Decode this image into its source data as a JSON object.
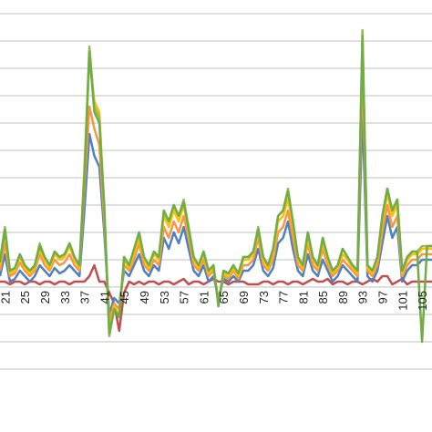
{
  "chart_data": {
    "type": "line",
    "title": "",
    "xlabel": "",
    "ylabel": "",
    "grid": true,
    "x_tick_labels": [
      "21",
      "25",
      "29",
      "33",
      "37",
      "41",
      "45",
      "49",
      "53",
      "57",
      "61",
      "65",
      "69",
      "73",
      "77",
      "81",
      "85",
      "89",
      "93",
      "97",
      "101",
      "105"
    ],
    "x_tick_start": 21,
    "x_tick_step": 4,
    "x_range": [
      20,
      107
    ],
    "y_range": [
      -2,
      5.5
    ],
    "grid_values": [
      -1.5,
      -1,
      -0.5,
      0,
      0.5,
      1,
      1.5,
      2,
      2.5,
      3,
      3.5,
      4,
      4.5,
      5,
      5.5
    ],
    "series": [
      {
        "color": "#c0504d",
        "values": [
          0.1,
          0.1,
          0.05,
          0.1,
          0.1,
          0.05,
          0.1,
          0.1,
          0.05,
          0.1,
          0.1,
          0.05,
          0.1,
          0.1,
          0.05,
          0.1,
          0.1,
          0.1,
          0.2,
          0.4,
          0.1,
          0.1,
          -0.1,
          -0.3,
          -0.8,
          -0.1,
          0.1,
          0.05,
          0.1,
          0.05,
          0.1,
          0.1,
          0.05,
          0.1,
          0.1,
          0.05,
          0.1,
          0.15,
          0.05,
          0.1,
          0.1,
          0.05,
          0.1,
          0.15,
          0.1,
          0.1,
          0.05,
          0.1,
          0.1,
          0.1,
          0.05,
          0.05,
          0.05,
          0.1,
          0.1,
          0.05,
          0.1,
          0.1,
          0.05,
          0.1,
          0.1,
          0.05,
          0.1,
          0.15,
          0.1,
          0.1,
          0.15,
          0.05,
          0.1,
          0.1,
          0.05,
          0.1,
          0.1,
          0.05,
          0.1,
          0.15,
          0.1,
          0.2,
          0.2,
          0.05,
          0.1,
          0.15,
          0.05,
          0.1,
          0.1,
          0.1,
          0.1,
          0.1
        ]
      },
      {
        "color": "#4f81bd",
        "values": [
          0.2,
          0.6,
          0.1,
          0.15,
          0.3,
          0.2,
          0.1,
          0.2,
          0.4,
          0.3,
          0.2,
          0.35,
          0.25,
          0.3,
          0.4,
          0.3,
          0.2,
          1.4,
          2.8,
          2.4,
          2.2,
          1.0,
          -0.5,
          -0.2,
          -0.3,
          0.3,
          0.2,
          0.4,
          0.6,
          0.3,
          0.2,
          0.4,
          0.3,
          0.9,
          0.7,
          1.0,
          0.8,
          1.1,
          0.7,
          0.3,
          0.2,
          0.4,
          0.1,
          0.2,
          -0.2,
          0.15,
          0.1,
          0.2,
          0.1,
          0.3,
          0.3,
          0.4,
          0.7,
          0.3,
          0.2,
          0.35,
          0.8,
          0.9,
          1.2,
          0.7,
          0.3,
          0.2,
          0.6,
          0.3,
          0.2,
          0.5,
          0.3,
          0.1,
          0.2,
          0.4,
          0.3,
          0.2,
          0.1,
          3.2,
          0.2,
          0.1,
          0.3,
          0.8,
          1.3,
          0.9,
          1.1,
          0.1,
          0.3,
          0.4,
          0.4,
          0.5,
          0.5,
          0.5
        ]
      },
      {
        "color": "#f79646",
        "values": [
          0.3,
          0.8,
          0.2,
          0.25,
          0.45,
          0.3,
          0.2,
          0.3,
          0.6,
          0.4,
          0.3,
          0.5,
          0.4,
          0.45,
          0.6,
          0.4,
          0.3,
          1.8,
          3.3,
          2.9,
          2.6,
          1.2,
          -0.6,
          -0.3,
          -0.4,
          0.4,
          0.3,
          0.5,
          0.8,
          0.4,
          0.3,
          0.5,
          0.4,
          1.1,
          0.9,
          1.2,
          1.0,
          1.3,
          0.9,
          0.4,
          0.3,
          0.5,
          0.2,
          0.3,
          -0.25,
          0.2,
          0.15,
          0.3,
          0.15,
          0.4,
          0.4,
          0.5,
          0.9,
          0.4,
          0.3,
          0.5,
          1.0,
          1.1,
          1.4,
          0.9,
          0.4,
          0.3,
          0.8,
          0.4,
          0.3,
          0.7,
          0.4,
          0.2,
          0.3,
          0.5,
          0.4,
          0.3,
          0.2,
          4.0,
          0.3,
          0.2,
          0.4,
          1.0,
          1.5,
          1.1,
          1.3,
          0.2,
          0.4,
          0.5,
          0.5,
          0.6,
          0.6,
          0.6
        ]
      },
      {
        "color": "#ffc000",
        "values": [
          0.4,
          1.0,
          0.25,
          0.3,
          0.55,
          0.35,
          0.25,
          0.35,
          0.7,
          0.5,
          0.35,
          0.6,
          0.5,
          0.55,
          0.75,
          0.5,
          0.35,
          2.2,
          4.2,
          3.4,
          3.2,
          1.4,
          -0.8,
          -0.35,
          -0.5,
          0.5,
          0.35,
          0.6,
          0.9,
          0.5,
          0.35,
          0.6,
          0.5,
          1.3,
          1.1,
          1.4,
          1.2,
          1.5,
          1.0,
          0.5,
          0.35,
          0.6,
          0.25,
          0.35,
          -0.3,
          0.25,
          0.2,
          0.35,
          0.2,
          0.5,
          0.5,
          0.6,
          1.0,
          0.5,
          0.35,
          0.6,
          1.2,
          1.3,
          1.6,
          1.1,
          0.5,
          0.35,
          0.9,
          0.5,
          0.35,
          0.8,
          0.5,
          0.25,
          0.35,
          0.6,
          0.5,
          0.35,
          0.25,
          4.5,
          0.35,
          0.25,
          0.5,
          1.2,
          1.7,
          1.3,
          1.5,
          0.25,
          0.5,
          0.6,
          0.6,
          0.7,
          0.7,
          0.7
        ]
      },
      {
        "color": "#9bbb59",
        "values": [
          0.5,
          1.1,
          0.3,
          0.35,
          0.6,
          0.4,
          0.3,
          0.4,
          0.8,
          0.55,
          0.4,
          0.65,
          0.55,
          0.6,
          0.8,
          0.55,
          0.4,
          2.1,
          4.4,
          3.3,
          3.1,
          1.5,
          -0.9,
          -0.4,
          -0.55,
          0.55,
          0.4,
          0.7,
          1.0,
          0.55,
          0.4,
          0.65,
          0.55,
          1.4,
          1.2,
          1.5,
          1.3,
          1.6,
          1.1,
          0.55,
          0.4,
          0.65,
          0.3,
          0.4,
          -0.35,
          0.3,
          0.25,
          0.4,
          0.25,
          0.55,
          0.55,
          0.65,
          1.1,
          0.55,
          0.4,
          0.7,
          1.3,
          1.4,
          1.8,
          1.2,
          0.55,
          0.4,
          1.0,
          0.55,
          0.4,
          0.9,
          0.55,
          0.3,
          0.4,
          0.7,
          0.55,
          0.4,
          0.3,
          4.7,
          0.4,
          0.3,
          0.55,
          1.3,
          1.8,
          1.4,
          1.6,
          0.3,
          0.55,
          0.65,
          0.65,
          0.75,
          0.75,
          0.75
        ]
      },
      {
        "color": "#70ad47",
        "values": [
          0.45,
          1.05,
          0.3,
          0.35,
          0.6,
          0.4,
          0.3,
          0.4,
          0.75,
          0.55,
          0.4,
          0.65,
          0.55,
          0.6,
          0.8,
          0.55,
          0.4,
          2.0,
          4.3,
          3.2,
          3.0,
          1.45,
          -0.85,
          -0.4,
          -0.55,
          0.55,
          0.4,
          0.7,
          1.0,
          0.55,
          0.4,
          0.65,
          0.55,
          1.4,
          1.2,
          1.5,
          1.3,
          1.55,
          1.05,
          0.55,
          0.4,
          0.65,
          0.3,
          0.4,
          -0.35,
          0.3,
          0.25,
          0.4,
          0.25,
          0.55,
          0.55,
          0.65,
          1.05,
          0.55,
          0.4,
          0.7,
          1.3,
          1.4,
          1.75,
          1.2,
          0.55,
          0.4,
          1.0,
          0.55,
          0.4,
          0.9,
          0.55,
          0.3,
          0.4,
          0.7,
          0.55,
          0.4,
          0.3,
          4.6,
          0.4,
          0.3,
          0.55,
          1.3,
          1.8,
          1.4,
          1.6,
          0.3,
          0.55,
          0.65,
          0.65,
          -1.0,
          0.75,
          0.75
        ]
      }
    ]
  }
}
